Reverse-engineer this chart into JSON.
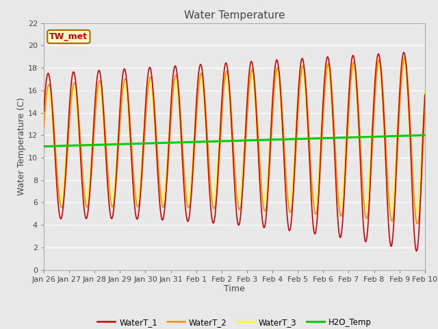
{
  "title": "Water Temperature",
  "xlabel": "Time",
  "ylabel": "Water Temperature (C)",
  "ylim": [
    0,
    22
  ],
  "yticks": [
    0,
    2,
    4,
    6,
    8,
    10,
    12,
    14,
    16,
    18,
    20,
    22
  ],
  "xtick_labels": [
    "Jan 26",
    "Jan 27",
    "Jan 28",
    "Jan 29",
    "Jan 30",
    "Jan 31",
    "Feb 1",
    "Feb 2",
    "Feb 3",
    "Feb 4",
    "Feb 5",
    "Feb 6",
    "Feb 7",
    "Feb 8",
    "Feb 9",
    "Feb 10"
  ],
  "annotation_text": "TW_met",
  "annotation_color": "#cc0000",
  "annotation_bg": "#ffffcc",
  "annotation_border": "#aa6600",
  "colors": {
    "WaterT_1": "#cc0000",
    "WaterT_2": "#ff8800",
    "WaterT_3": "#ffff00",
    "H2O_Temp": "#00cc00"
  },
  "background_color": "#e8e8e8",
  "grid_color": "#ffffff",
  "linewidth": 1.2,
  "h2o_linewidth": 2.2,
  "days": 15,
  "n_points": 720
}
